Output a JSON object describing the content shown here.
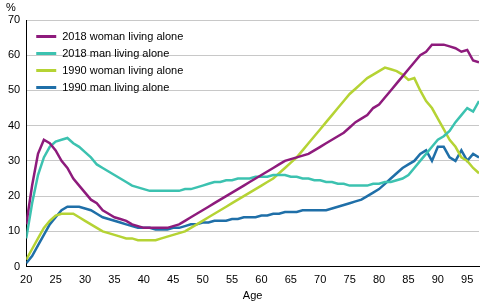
{
  "chart_data": {
    "type": "line",
    "xlabel": "Age",
    "ylabel": "%",
    "x": [
      20,
      21,
      22,
      23,
      24,
      25,
      26,
      27,
      28,
      29,
      30,
      31,
      32,
      33,
      34,
      35,
      36,
      37,
      38,
      39,
      40,
      41,
      42,
      43,
      44,
      45,
      46,
      47,
      48,
      49,
      50,
      51,
      52,
      53,
      54,
      55,
      56,
      57,
      58,
      59,
      60,
      61,
      62,
      63,
      64,
      65,
      66,
      67,
      68,
      69,
      70,
      71,
      72,
      73,
      74,
      75,
      76,
      77,
      78,
      79,
      80,
      81,
      82,
      83,
      84,
      85,
      86,
      87,
      88,
      89,
      90,
      91,
      92,
      93,
      94,
      95,
      96,
      97
    ],
    "series": [
      {
        "name": "2018 woman living alone",
        "color": "#8e1b7c",
        "values": [
          12,
          23,
          32,
          36,
          35,
          33,
          30,
          28,
          25,
          23,
          21,
          19,
          18,
          16,
          15,
          14,
          13.5,
          13,
          12,
          11.5,
          11,
          11,
          11,
          11,
          11,
          11.5,
          12,
          13,
          14,
          15,
          16,
          17,
          18,
          19,
          20,
          21,
          22,
          23,
          24,
          25,
          26,
          27,
          28,
          29,
          30,
          30.5,
          31,
          31.5,
          32,
          33,
          34,
          35,
          36,
          37,
          38,
          39.5,
          41,
          42,
          43,
          45,
          46,
          48,
          50,
          52,
          54,
          56,
          58,
          60,
          61,
          63,
          63,
          63,
          62.5,
          62,
          61,
          61.5,
          58.5,
          58
        ]
      },
      {
        "name": "2018 man living alone",
        "color": "#3cc2b0",
        "values": [
          8,
          18,
          26,
          31,
          34,
          35.5,
          36,
          36.5,
          35,
          34,
          32.5,
          31,
          29,
          28,
          27,
          26,
          25,
          24,
          23,
          22.5,
          22,
          21.5,
          21.5,
          21.5,
          21.5,
          21.5,
          21.5,
          22,
          22,
          22.5,
          23,
          23.5,
          24,
          24,
          24.5,
          24.5,
          25,
          25,
          25,
          25.5,
          25.5,
          25.5,
          26,
          26,
          26,
          25.5,
          25.5,
          25,
          25,
          24.5,
          24.5,
          24,
          24,
          23.5,
          23.5,
          23,
          23,
          23,
          23,
          23.5,
          23.5,
          24,
          24,
          24.5,
          25,
          26,
          28,
          30,
          32,
          34,
          36,
          37,
          38.5,
          41,
          43,
          45,
          44,
          47
        ]
      },
      {
        "name": "1990 woman living alone",
        "color": "#b5d334",
        "values": [
          2,
          5,
          8,
          11,
          13,
          14.5,
          15,
          15,
          15,
          14,
          13,
          12,
          11,
          10,
          9.5,
          9,
          8.5,
          8,
          8,
          7.5,
          7.5,
          7.5,
          7.5,
          8,
          8.5,
          9,
          9.5,
          10,
          11,
          12,
          13,
          14,
          15,
          16,
          17,
          18,
          19,
          20,
          21,
          22,
          23,
          24,
          25,
          26.5,
          28,
          29.5,
          31,
          33,
          35,
          37,
          39,
          41,
          43,
          45,
          47,
          49,
          50.5,
          52,
          53.5,
          54.5,
          55.5,
          56.5,
          56,
          55.5,
          54.5,
          53,
          53.5,
          50,
          47,
          45,
          42,
          39,
          36,
          34,
          31,
          30,
          28,
          26.5
        ]
      },
      {
        "name": "1990 man living alone",
        "color": "#1f6fa8",
        "values": [
          1,
          3,
          6,
          9,
          12,
          14,
          16,
          17,
          17,
          17,
          16.5,
          16,
          15,
          14,
          13.5,
          13,
          12.5,
          12,
          11.5,
          11,
          11,
          11,
          10.5,
          10.5,
          10.5,
          11,
          11,
          11.5,
          12,
          12,
          12.5,
          12.5,
          13,
          13,
          13,
          13.5,
          13.5,
          14,
          14,
          14,
          14.5,
          14.5,
          15,
          15,
          15.5,
          15.5,
          15.5,
          16,
          16,
          16,
          16,
          16,
          16.5,
          17,
          17.5,
          18,
          18.5,
          19,
          20,
          21,
          22,
          23.5,
          25,
          26.5,
          28,
          29,
          30,
          32,
          33,
          30,
          34,
          34,
          31,
          30,
          33,
          30,
          32,
          31
        ]
      }
    ],
    "xlim": [
      20,
      97
    ],
    "xticks": [
      20,
      25,
      30,
      35,
      40,
      45,
      50,
      55,
      60,
      65,
      70,
      75,
      80,
      85,
      90,
      95
    ],
    "ylim": [
      0,
      70
    ],
    "yticks": [
      0,
      10,
      20,
      30,
      40,
      50,
      60,
      70
    ],
    "grid": true,
    "legend": "upper left"
  }
}
